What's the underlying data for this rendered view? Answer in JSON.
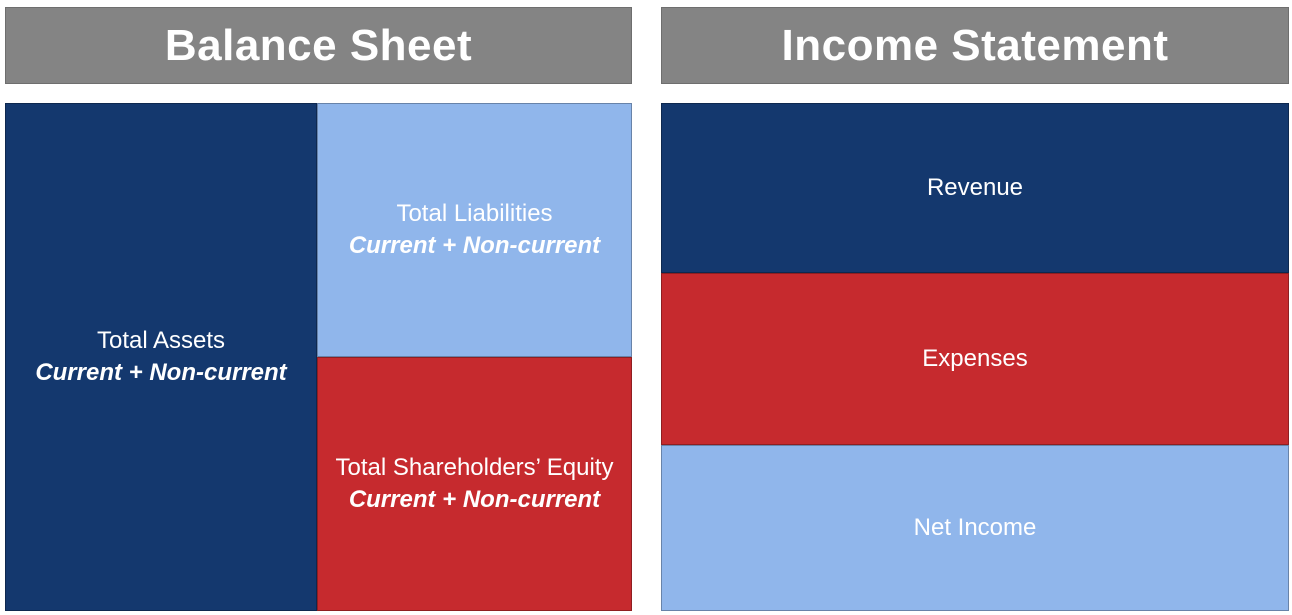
{
  "balance_sheet": {
    "title": "Balance Sheet",
    "assets": {
      "label": "Total Assets",
      "sublabel": "Current + Non-current"
    },
    "liabilities": {
      "label": "Total Liabilities",
      "sublabel": "Current + Non-current"
    },
    "equity": {
      "label": "Total Shareholders’ Equity",
      "sublabel": "Current + Non-current"
    }
  },
  "income_statement": {
    "title": "Income Statement",
    "revenue": {
      "label": "Revenue"
    },
    "expenses": {
      "label": "Expenses"
    },
    "net_income": {
      "label": "Net Income"
    }
  },
  "colors": {
    "navy": "#14386E",
    "lightblue": "#90B6EB",
    "red": "#C62A2E",
    "gray": "#848484",
    "text": "#FFFFFF"
  }
}
